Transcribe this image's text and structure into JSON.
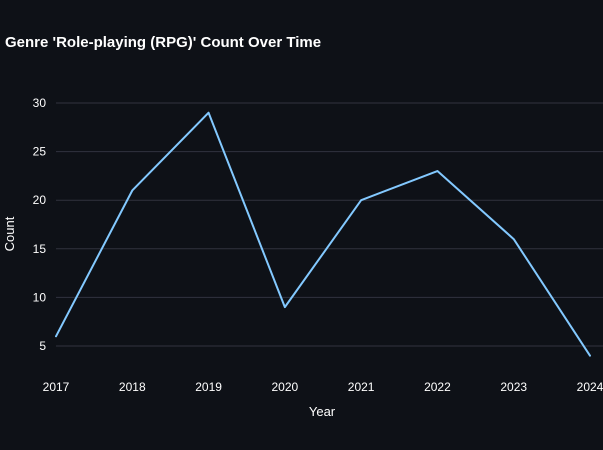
{
  "chart_data": {
    "type": "line",
    "title": "Genre 'Role-playing (RPG)' Count Over Time",
    "xlabel": "Year",
    "ylabel": "Count",
    "x": [
      "2017",
      "2018",
      "2019",
      "2020",
      "2021",
      "2022",
      "2023",
      "2024"
    ],
    "series": [
      {
        "values": [
          6,
          21,
          29,
          9,
          20,
          23,
          16,
          4
        ]
      }
    ],
    "yticks": [
      5,
      10,
      15,
      20,
      25,
      30
    ],
    "ylim": [
      4,
      30
    ],
    "grid": "horizontal",
    "colors": {
      "background": "#0e1117",
      "line": "#83c9ff",
      "grid": "#31333f",
      "text": "#ffffff"
    }
  }
}
